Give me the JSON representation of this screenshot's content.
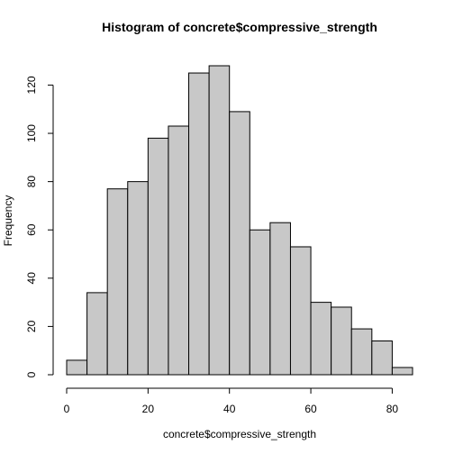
{
  "chart_data": {
    "type": "bar",
    "title": "Histogram of concrete$compressive_strength",
    "xlabel": "concrete$compressive_strength",
    "ylabel": "Frequency",
    "bin_edges": [
      0,
      5,
      10,
      15,
      20,
      25,
      30,
      35,
      40,
      45,
      50,
      55,
      60,
      65,
      70,
      75,
      80,
      85
    ],
    "values": [
      6,
      34,
      77,
      80,
      98,
      103,
      125,
      128,
      109,
      60,
      63,
      53,
      30,
      28,
      19,
      14,
      3
    ],
    "xlim": [
      0,
      85
    ],
    "ylim": [
      0,
      128
    ],
    "x_ticks": [
      0,
      20,
      40,
      60,
      80
    ],
    "y_ticks": [
      0,
      20,
      40,
      60,
      80,
      100,
      120
    ],
    "bar_color": "#c8c8c8",
    "grid": false,
    "legend": "none"
  }
}
